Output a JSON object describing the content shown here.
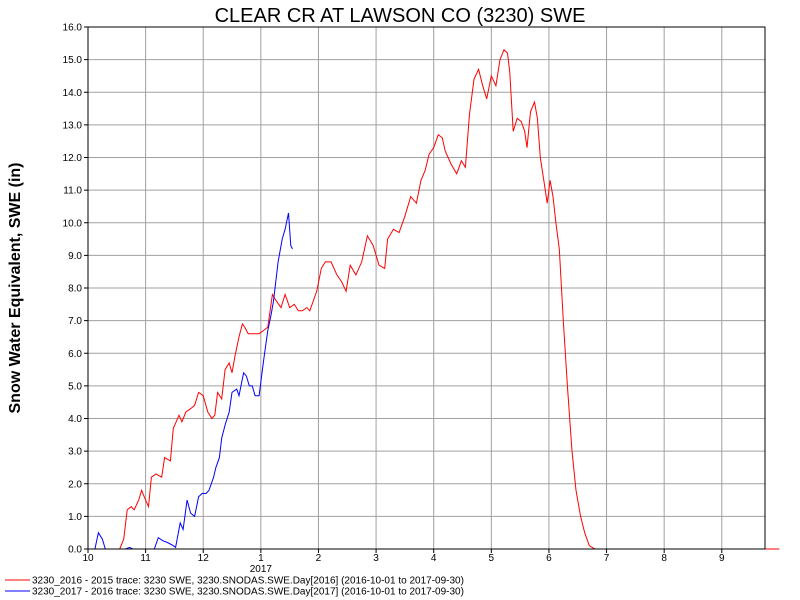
{
  "chart_data": {
    "type": "line",
    "title": "CLEAR CR AT LAWSON CO (3230) SWE",
    "ylabel": "Snow Water Equivalent, SWE (in)",
    "xlabel": "",
    "ylim": [
      0,
      16
    ],
    "y_ticks": [
      "0.0",
      "1.0",
      "2.0",
      "3.0",
      "4.0",
      "5.0",
      "6.0",
      "7.0",
      "8.0",
      "9.0",
      "10.0",
      "11.0",
      "12.0",
      "13.0",
      "14.0",
      "15.0",
      "16.0"
    ],
    "x_axis_unit": "month index (10 = Oct 2016, 13 = Jan 2017)",
    "xlim": [
      10,
      22
    ],
    "x_ticks": [
      {
        "value": 10,
        "label": "10"
      },
      {
        "value": 11,
        "label": "11"
      },
      {
        "value": 12,
        "label": "12"
      },
      {
        "value": 13,
        "label": "1"
      },
      {
        "value": 14,
        "label": "2"
      },
      {
        "value": 15,
        "label": "3"
      },
      {
        "value": 16,
        "label": "4"
      },
      {
        "value": 17,
        "label": "5"
      },
      {
        "value": 18,
        "label": "6"
      },
      {
        "value": 19,
        "label": "7"
      },
      {
        "value": 20,
        "label": "8"
      },
      {
        "value": 21,
        "label": "9"
      }
    ],
    "year_label": {
      "value": 13,
      "label": "2017"
    },
    "grid": true,
    "legend_position": "bottom",
    "series": [
      {
        "name": "3230_2016 - 2015 trace: 3230 SWE, 3230.SNODAS.SWE.Day[2016] (2016-10-01 to 2017-09-30)",
        "color": "#ff0000",
        "points": [
          [
            10.0,
            0.0
          ],
          [
            10.55,
            0.0
          ],
          [
            10.62,
            0.3
          ],
          [
            10.68,
            1.2
          ],
          [
            10.75,
            1.3
          ],
          [
            10.8,
            1.2
          ],
          [
            10.88,
            1.5
          ],
          [
            10.93,
            1.8
          ],
          [
            11.0,
            1.5
          ],
          [
            11.05,
            1.3
          ],
          [
            11.1,
            2.2
          ],
          [
            11.18,
            2.3
          ],
          [
            11.28,
            2.2
          ],
          [
            11.33,
            2.8
          ],
          [
            11.43,
            2.7
          ],
          [
            11.48,
            3.7
          ],
          [
            11.53,
            3.9
          ],
          [
            11.58,
            4.1
          ],
          [
            11.63,
            3.9
          ],
          [
            11.7,
            4.2
          ],
          [
            11.78,
            4.3
          ],
          [
            11.85,
            4.4
          ],
          [
            11.92,
            4.8
          ],
          [
            12.0,
            4.7
          ],
          [
            12.08,
            4.2
          ],
          [
            12.15,
            4.0
          ],
          [
            12.2,
            4.1
          ],
          [
            12.25,
            4.8
          ],
          [
            12.32,
            4.6
          ],
          [
            12.38,
            5.5
          ],
          [
            12.45,
            5.7
          ],
          [
            12.5,
            5.4
          ],
          [
            12.55,
            5.9
          ],
          [
            12.62,
            6.5
          ],
          [
            12.68,
            6.9
          ],
          [
            12.72,
            6.8
          ],
          [
            12.78,
            6.6
          ],
          [
            12.88,
            6.6
          ],
          [
            12.97,
            6.6
          ],
          [
            13.05,
            6.7
          ],
          [
            13.12,
            6.8
          ],
          [
            13.2,
            7.8
          ],
          [
            13.27,
            7.6
          ],
          [
            13.35,
            7.4
          ],
          [
            13.42,
            7.8
          ],
          [
            13.5,
            7.4
          ],
          [
            13.58,
            7.5
          ],
          [
            13.65,
            7.3
          ],
          [
            13.72,
            7.3
          ],
          [
            13.8,
            7.4
          ],
          [
            13.85,
            7.3
          ],
          [
            13.97,
            7.9
          ],
          [
            14.05,
            8.6
          ],
          [
            14.12,
            8.8
          ],
          [
            14.22,
            8.8
          ],
          [
            14.32,
            8.4
          ],
          [
            14.4,
            8.2
          ],
          [
            14.48,
            7.9
          ],
          [
            14.55,
            8.7
          ],
          [
            14.65,
            8.4
          ],
          [
            14.75,
            8.8
          ],
          [
            14.85,
            9.6
          ],
          [
            14.95,
            9.3
          ],
          [
            15.05,
            8.7
          ],
          [
            15.15,
            8.6
          ],
          [
            15.2,
            9.5
          ],
          [
            15.3,
            9.8
          ],
          [
            15.4,
            9.7
          ],
          [
            15.5,
            10.2
          ],
          [
            15.6,
            10.8
          ],
          [
            15.7,
            10.6
          ],
          [
            15.78,
            11.3
          ],
          [
            15.85,
            11.6
          ],
          [
            15.92,
            12.1
          ],
          [
            16.0,
            12.3
          ],
          [
            16.08,
            12.7
          ],
          [
            16.15,
            12.6
          ],
          [
            16.2,
            12.2
          ],
          [
            16.3,
            11.8
          ],
          [
            16.4,
            11.5
          ],
          [
            16.48,
            11.9
          ],
          [
            16.55,
            11.7
          ],
          [
            16.62,
            13.3
          ],
          [
            16.7,
            14.4
          ],
          [
            16.78,
            14.7
          ],
          [
            16.85,
            14.2
          ],
          [
            16.92,
            13.8
          ],
          [
            17.0,
            14.5
          ],
          [
            17.08,
            14.2
          ],
          [
            17.15,
            15.0
          ],
          [
            17.22,
            15.3
          ],
          [
            17.28,
            15.2
          ],
          [
            17.32,
            14.6
          ],
          [
            17.38,
            12.8
          ],
          [
            17.45,
            13.2
          ],
          [
            17.52,
            13.1
          ],
          [
            17.58,
            12.8
          ],
          [
            17.62,
            12.3
          ],
          [
            17.68,
            13.4
          ],
          [
            17.75,
            13.7
          ],
          [
            17.8,
            13.2
          ],
          [
            17.85,
            12.0
          ],
          [
            17.92,
            11.2
          ],
          [
            17.97,
            10.6
          ],
          [
            18.02,
            11.3
          ],
          [
            18.07,
            10.8
          ],
          [
            18.12,
            10.0
          ],
          [
            18.18,
            9.2
          ],
          [
            18.25,
            7.0
          ],
          [
            18.32,
            5.0
          ],
          [
            18.4,
            3.0
          ],
          [
            18.47,
            1.8
          ],
          [
            18.55,
            1.0
          ],
          [
            18.62,
            0.5
          ],
          [
            18.7,
            0.1
          ],
          [
            18.8,
            0.0
          ],
          [
            22.0,
            0.0
          ]
        ]
      },
      {
        "name": "3230_2017 - 2016 trace: 3230 SWE, 3230.SNODAS.SWE.Day[2017] (2016-10-01 to 2017-09-30)",
        "color": "#0000ff",
        "points": [
          [
            10.12,
            0.0
          ],
          [
            10.18,
            0.5
          ],
          [
            10.25,
            0.3
          ],
          [
            10.3,
            0.0
          ],
          [
            10.65,
            0.0
          ],
          [
            10.72,
            0.05
          ],
          [
            10.78,
            0.0
          ],
          [
            11.15,
            0.0
          ],
          [
            11.22,
            0.35
          ],
          [
            11.3,
            0.25
          ],
          [
            11.38,
            0.2
          ],
          [
            11.48,
            0.1
          ],
          [
            11.52,
            0.05
          ],
          [
            11.6,
            0.8
          ],
          [
            11.65,
            0.6
          ],
          [
            11.72,
            1.5
          ],
          [
            11.78,
            1.1
          ],
          [
            11.85,
            1.0
          ],
          [
            11.92,
            1.6
          ],
          [
            11.98,
            1.7
          ],
          [
            12.05,
            1.7
          ],
          [
            12.1,
            1.8
          ],
          [
            12.18,
            2.2
          ],
          [
            12.22,
            2.5
          ],
          [
            12.28,
            2.8
          ],
          [
            12.32,
            3.4
          ],
          [
            12.38,
            3.8
          ],
          [
            12.45,
            4.2
          ],
          [
            12.5,
            4.8
          ],
          [
            12.58,
            4.9
          ],
          [
            12.62,
            4.7
          ],
          [
            12.7,
            5.4
          ],
          [
            12.75,
            5.3
          ],
          [
            12.8,
            5.0
          ],
          [
            12.85,
            5.0
          ],
          [
            12.9,
            4.7
          ],
          [
            12.97,
            4.7
          ],
          [
            13.05,
            5.8
          ],
          [
            13.12,
            6.7
          ],
          [
            13.17,
            7.1
          ],
          [
            13.22,
            7.6
          ],
          [
            13.3,
            8.8
          ],
          [
            13.37,
            9.5
          ],
          [
            13.42,
            9.8
          ],
          [
            13.48,
            10.3
          ],
          [
            13.52,
            9.3
          ],
          [
            13.55,
            9.2
          ]
        ]
      }
    ]
  }
}
